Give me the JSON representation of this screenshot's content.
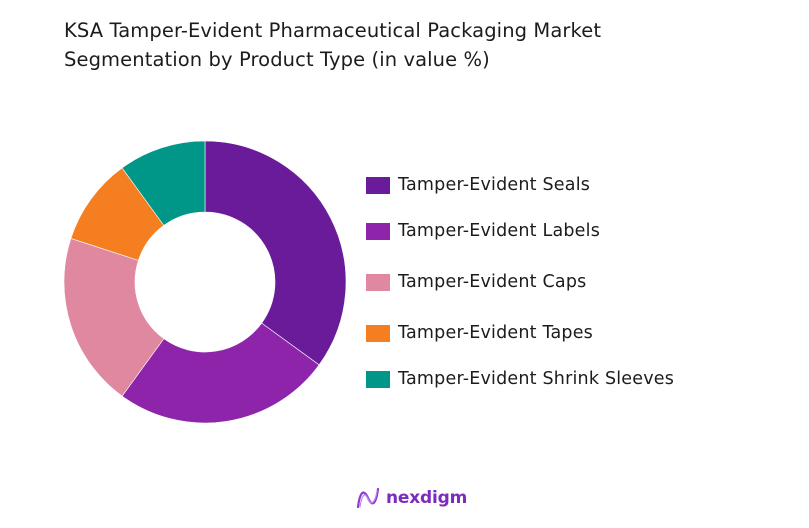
{
  "title": {
    "line1": "KSA Tamper-Evident Pharmaceutical Packaging Market",
    "line2": "Segmentation by Product Type (in value %)"
  },
  "legend": {
    "items": [
      {
        "label": "Tamper-Evident Seals",
        "color": "#6a1b9a"
      },
      {
        "label": "Tamper-Evident Labels",
        "color": "#8e24aa"
      },
      {
        "label": "Tamper-Evident Caps",
        "color": "#df88a0"
      },
      {
        "label": "Tamper-Evident Tapes",
        "color": "#f57f20"
      },
      {
        "label": "Tamper-Evident Shrink Sleeves",
        "color": "#009688"
      }
    ]
  },
  "logo": {
    "text": "nexdigm",
    "icon": "nexdigm-wave-icon",
    "color": "#7b2cbf"
  },
  "chart_data": {
    "type": "pie",
    "subtype": "donut",
    "title": "KSA Tamper-Evident Pharmaceutical Packaging Market Segmentation by Product Type (in value %)",
    "categories": [
      "Tamper-Evident Seals",
      "Tamper-Evident Labels",
      "Tamper-Evident Caps",
      "Tamper-Evident Tapes",
      "Tamper-Evident Shrink Sleeves"
    ],
    "values": [
      35,
      25,
      20,
      10,
      10
    ],
    "unit": "%",
    "colors": [
      "#6a1b9a",
      "#8e24aa",
      "#df88a0",
      "#f57f20",
      "#009688"
    ],
    "start_angle": "12 o'clock, clockwise",
    "data_labels": false,
    "legend_position": "right"
  }
}
